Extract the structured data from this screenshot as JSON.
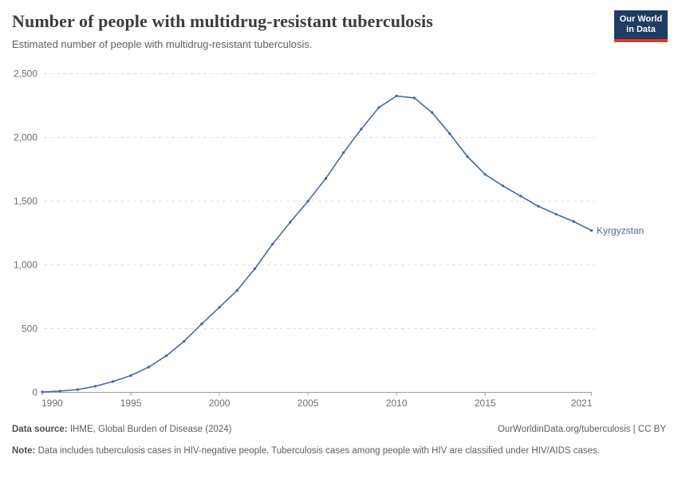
{
  "header": {
    "title": "Number of people with multidrug-resistant tuberculosis",
    "subtitle": "Estimated number of people with multidrug-resistant tuberculosis.",
    "logo": {
      "line1": "Our World",
      "line2": "in Data"
    }
  },
  "chart_data": {
    "type": "line",
    "title": "Number of people with multidrug-resistant tuberculosis",
    "subtitle": "Estimated number of people with multidrug-resistant tuberculosis.",
    "entity": "Kyrgyzstan",
    "x": [
      1990,
      1991,
      1992,
      1993,
      1994,
      1995,
      1996,
      1997,
      1998,
      1999,
      2000,
      2001,
      2002,
      2003,
      2004,
      2005,
      2006,
      2007,
      2008,
      2009,
      2010,
      2011,
      2012,
      2013,
      2014,
      2015,
      2016,
      2017,
      2018,
      2019,
      2020,
      2021
    ],
    "values": [
      3,
      10,
      22,
      48,
      85,
      132,
      198,
      287,
      400,
      537,
      667,
      800,
      970,
      1163,
      1335,
      1500,
      1678,
      1880,
      2065,
      2235,
      2325,
      2310,
      2195,
      2030,
      1850,
      1710,
      1620,
      1540,
      1460,
      1398,
      1340,
      1270
    ],
    "xlim": [
      1990,
      2021
    ],
    "ylim": [
      0,
      2500
    ],
    "xticks": [
      1990,
      1995,
      2000,
      2005,
      2010,
      2015,
      2021
    ],
    "yticks": [
      0,
      500,
      1000,
      1500,
      2000,
      2500
    ],
    "ytick_labels": [
      "0",
      "500",
      "1,000",
      "1,500",
      "2,000",
      "2,500"
    ],
    "grid": "horizontal dashed",
    "legend_position": "end-of-line label",
    "line_color": "#4C6A9C",
    "axis_color": "#9c9c9c",
    "grid_color": "#dedede"
  },
  "footer": {
    "data_source_label": "Data source:",
    "data_source": " IHME, Global Burden of Disease (2024)",
    "link": "OurWorldinData.org/tuberculosis | CC BY",
    "note_label": "Note:",
    "note": " Data includes tuberculosis cases in HIV-negative people. Tuberculosis cases among people with HIV are classified under HIV/AIDS cases."
  }
}
